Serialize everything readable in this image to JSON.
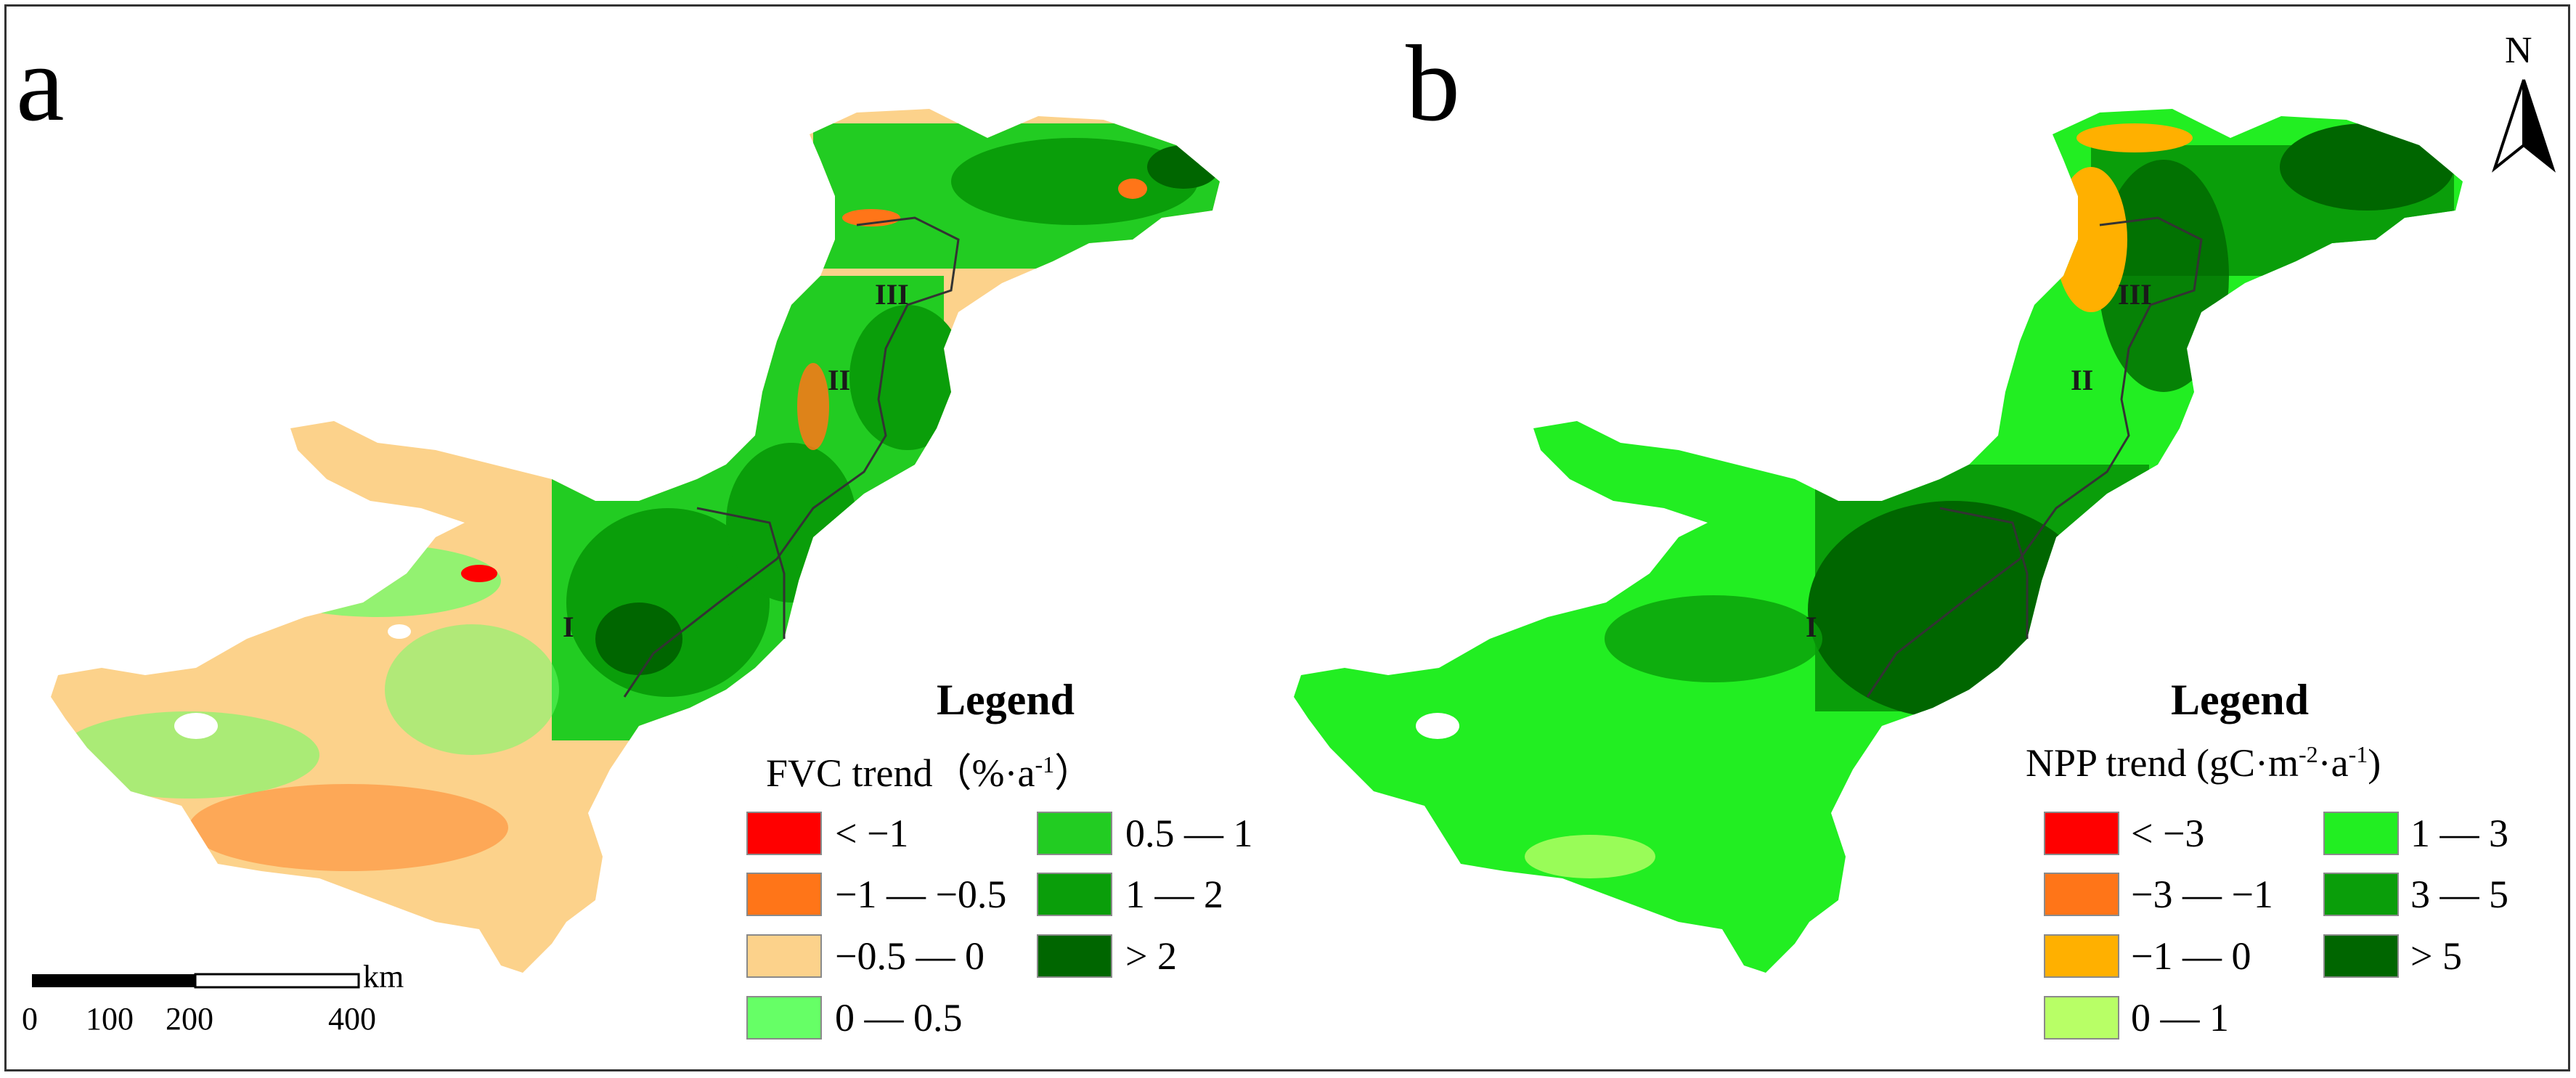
{
  "panel_a": {
    "label": "a",
    "zones": [
      "I",
      "II",
      "III"
    ],
    "legend": {
      "title": "Legend",
      "trend_label": "FVC trend",
      "unit_open": "（%·a",
      "unit_exp": "-1",
      "unit_close": "）",
      "classes": [
        {
          "label": "< −1",
          "color": "#ff0000"
        },
        {
          "label": "−1 — −0.5",
          "color": "#ff7518"
        },
        {
          "label": "−0.5 — 0",
          "color": "#fcd28b"
        },
        {
          "label": "0 — 0.5",
          "color": "#66ff66"
        },
        {
          "label": "0.5 — 1",
          "color": "#22cc22"
        },
        {
          "label": "1 — 2",
          "color": "#0a9e0a"
        },
        {
          "label": "> 2",
          "color": "#006600"
        }
      ]
    },
    "scalebar": {
      "unit": "km",
      "ticks": [
        "0",
        "100",
        "200",
        "400"
      ]
    }
  },
  "panel_b": {
    "label": "b",
    "zones": [
      "I",
      "II",
      "III"
    ],
    "north_arrow": "N",
    "legend": {
      "title": "Legend",
      "trend_label": "NPP trend (gC·m",
      "exp1": "-2",
      "mid": "·a",
      "exp2": "-1",
      "close": ")",
      "classes": [
        {
          "label": "< −3",
          "color": "#ff0000"
        },
        {
          "label": "−3 — −1",
          "color": "#ff7518"
        },
        {
          "label": "−1 — 0",
          "color": "#ffb000"
        },
        {
          "label": "0 — 1",
          "color": "#b8ff66"
        },
        {
          "label": "1 — 3",
          "color": "#22ee22"
        },
        {
          "label": "3 — 5",
          "color": "#0a9e0a"
        },
        {
          "label": "> 5",
          "color": "#006600"
        }
      ]
    }
  }
}
